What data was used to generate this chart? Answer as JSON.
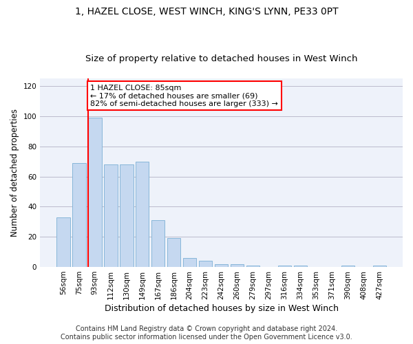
{
  "title": "1, HAZEL CLOSE, WEST WINCH, KING'S LYNN, PE33 0PT",
  "subtitle": "Size of property relative to detached houses in West Winch",
  "xlabel": "Distribution of detached houses by size in West Winch",
  "ylabel": "Number of detached properties",
  "bar_color": "#c5d8f0",
  "bar_edge_color": "#7aafd4",
  "background_color": "#eef2fa",
  "grid_color": "#bbbbcc",
  "annotation_box_text": "1 HAZEL CLOSE: 85sqm\n← 17% of detached houses are smaller (69)\n82% of semi-detached houses are larger (333) →",
  "annotation_box_color": "#ffffff",
  "annotation_box_edge_color": "red",
  "vline_color": "red",
  "vline_pos": 1.57,
  "categories": [
    "56sqm",
    "75sqm",
    "93sqm",
    "112sqm",
    "130sqm",
    "149sqm",
    "167sqm",
    "186sqm",
    "204sqm",
    "223sqm",
    "242sqm",
    "260sqm",
    "279sqm",
    "297sqm",
    "316sqm",
    "334sqm",
    "353sqm",
    "371sqm",
    "390sqm",
    "408sqm",
    "427sqm"
  ],
  "values": [
    33,
    69,
    99,
    68,
    68,
    70,
    31,
    19,
    6,
    4,
    2,
    2,
    1,
    0,
    1,
    1,
    0,
    0,
    1,
    0,
    1
  ],
  "ylim": [
    0,
    125
  ],
  "yticks": [
    0,
    20,
    40,
    60,
    80,
    100,
    120
  ],
  "bar_width": 0.85,
  "footer_text": "Contains HM Land Registry data © Crown copyright and database right 2024.\nContains public sector information licensed under the Open Government Licence v3.0.",
  "title_fontsize": 10,
  "subtitle_fontsize": 9.5,
  "xlabel_fontsize": 9,
  "ylabel_fontsize": 8.5,
  "tick_fontsize": 7.5,
  "footer_fontsize": 7,
  "ann_fontsize": 8
}
